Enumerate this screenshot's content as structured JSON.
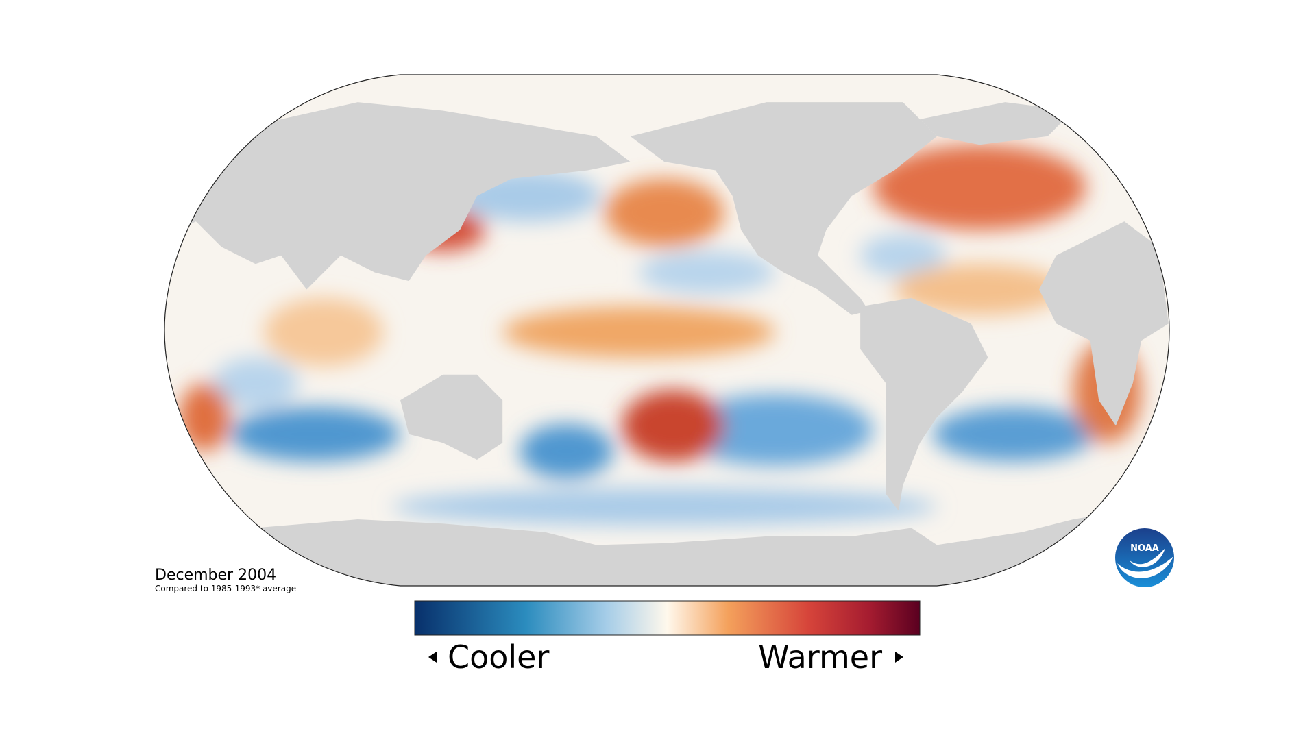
{
  "map": {
    "date_label": "December 2004",
    "baseline_note": "Compared to 1985-1993* average"
  },
  "legend": {
    "low_label": "Cooler",
    "high_label": "Warmer"
  },
  "logo": {
    "text": "NOAA"
  }
}
